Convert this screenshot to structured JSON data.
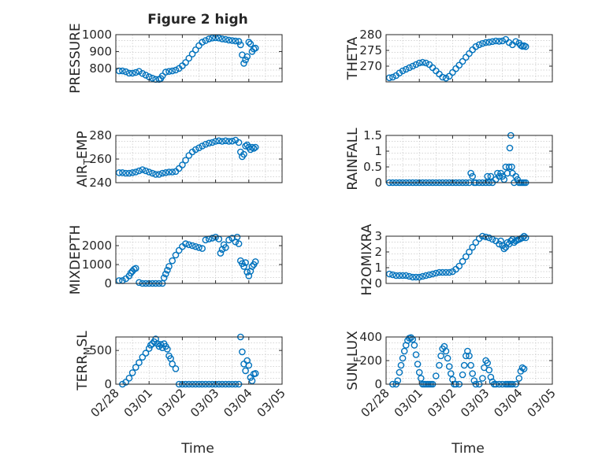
{
  "figure": {
    "title": "Figure 2 high",
    "xlabel": "Time"
  },
  "colors": {
    "marker": "#0072BD",
    "axis": "#262626",
    "grid": "#c8c8c8",
    "background": "#ffffff"
  },
  "chart_data": [
    {
      "type": "scatter",
      "id": "pressure",
      "title": "Figure 2 high",
      "ylabel": "PRESSURE",
      "ylim": [
        720,
        1000
      ],
      "yticks": [
        800,
        900,
        1000
      ],
      "xlim": [
        0,
        5
      ],
      "grid": true,
      "show_xticklabels": false,
      "x": [
        0.1,
        0.2,
        0.3,
        0.4,
        0.5,
        0.6,
        0.7,
        0.8,
        0.9,
        1.0,
        1.1,
        1.2,
        1.3,
        1.35,
        1.4,
        1.5,
        1.6,
        1.7,
        1.8,
        1.9,
        2.0,
        2.1,
        2.2,
        2.3,
        2.4,
        2.5,
        2.6,
        2.7,
        2.8,
        2.9,
        3.0,
        3.1,
        3.2,
        3.3,
        3.4,
        3.5,
        3.6,
        3.7,
        3.75,
        3.8,
        3.85,
        3.9,
        3.95,
        4.0,
        4.05,
        4.1,
        4.15,
        4.2
      ],
      "y": [
        785,
        785,
        780,
        772,
        772,
        776,
        782,
        770,
        760,
        750,
        742,
        735,
        735,
        740,
        755,
        778,
        782,
        785,
        790,
        800,
        815,
        835,
        860,
        885,
        910,
        935,
        955,
        965,
        975,
        980,
        982,
        980,
        975,
        972,
        968,
        965,
        962,
        960,
        940,
        880,
        830,
        850,
        870,
        955,
        945,
        900,
        915,
        920
      ]
    },
    {
      "type": "scatter",
      "id": "theta",
      "ylabel": "THETA",
      "ylim": [
        265,
        280
      ],
      "yticks": [
        270,
        275,
        280
      ],
      "xlim": [
        0,
        5
      ],
      "grid": true,
      "show_xticklabels": false,
      "x": [
        0.1,
        0.2,
        0.3,
        0.4,
        0.5,
        0.6,
        0.7,
        0.8,
        0.9,
        1.0,
        1.1,
        1.2,
        1.3,
        1.4,
        1.5,
        1.6,
        1.7,
        1.8,
        1.9,
        2.0,
        2.1,
        2.2,
        2.3,
        2.4,
        2.5,
        2.6,
        2.7,
        2.8,
        2.9,
        3.0,
        3.1,
        3.2,
        3.3,
        3.4,
        3.5,
        3.6,
        3.7,
        3.8,
        3.9,
        4.0,
        4.05,
        4.1,
        4.15,
        4.2
      ],
      "y": [
        266.3,
        266.5,
        267,
        267.8,
        268.5,
        269,
        269.5,
        270,
        270.5,
        271,
        271.2,
        271,
        270.5,
        269.5,
        268.5,
        267.5,
        266.5,
        266.2,
        266.8,
        268,
        269.2,
        270.3,
        271.5,
        272.8,
        274,
        275.2,
        276.2,
        276.8,
        277.2,
        277.5,
        277.6,
        277.8,
        278,
        277.9,
        278,
        278.5,
        277.5,
        276.8,
        277.8,
        277.3,
        276.6,
        276.3,
        276.5,
        276.2
      ]
    },
    {
      "type": "scatter",
      "id": "air-temp",
      "ylabel": "AIR",
      "ylabel_sub": "T",
      "ylabel_tail": "EMP",
      "ylim": [
        240,
        280
      ],
      "yticks": [
        240,
        260,
        280
      ],
      "xlim": [
        0,
        5
      ],
      "grid": true,
      "show_xticklabels": false,
      "x": [
        0.1,
        0.2,
        0.3,
        0.4,
        0.5,
        0.6,
        0.7,
        0.8,
        0.9,
        1.0,
        1.1,
        1.2,
        1.3,
        1.4,
        1.5,
        1.6,
        1.7,
        1.8,
        1.9,
        2.0,
        2.1,
        2.2,
        2.3,
        2.4,
        2.5,
        2.6,
        2.7,
        2.8,
        2.9,
        3.0,
        3.1,
        3.2,
        3.3,
        3.4,
        3.5,
        3.6,
        3.7,
        3.75,
        3.8,
        3.85,
        3.9,
        3.95,
        4.0,
        4.05,
        4.1,
        4.15,
        4.2
      ],
      "y": [
        248.5,
        248.5,
        248,
        248,
        248.5,
        249,
        250,
        251,
        250,
        249,
        248,
        247,
        247,
        248,
        248.5,
        249,
        249,
        249.5,
        252,
        255,
        259,
        263,
        266,
        268,
        269.5,
        271,
        272.5,
        273.5,
        274,
        275,
        275.5,
        275,
        275.5,
        275,
        275.2,
        276,
        274,
        266,
        262,
        264,
        271,
        272,
        270,
        268,
        270,
        269,
        270
      ]
    },
    {
      "type": "scatter",
      "id": "rainfall",
      "ylabel": "RAINFALL",
      "ylim": [
        0,
        1.5
      ],
      "yticks": [
        0,
        0.5,
        1,
        1.5
      ],
      "xlim": [
        0,
        5
      ],
      "grid": true,
      "show_xticklabels": false,
      "x": [
        0.1,
        0.2,
        0.3,
        0.4,
        0.5,
        0.6,
        0.7,
        0.8,
        0.9,
        1.0,
        1.1,
        1.2,
        1.3,
        1.4,
        1.5,
        1.6,
        1.7,
        1.8,
        1.9,
        2.0,
        2.1,
        2.2,
        2.3,
        2.4,
        2.5,
        2.55,
        2.6,
        2.65,
        2.7,
        2.8,
        2.9,
        3.0,
        3.05,
        3.1,
        3.15,
        3.2,
        3.3,
        3.35,
        3.4,
        3.45,
        3.5,
        3.55,
        3.6,
        3.65,
        3.7,
        3.72,
        3.75,
        3.78,
        3.8,
        3.85,
        3.9,
        3.95,
        4.0,
        4.05,
        4.1,
        4.15,
        4.2
      ],
      "y": [
        0,
        0,
        0,
        0,
        0,
        0,
        0,
        0,
        0,
        0,
        0,
        0,
        0,
        0,
        0,
        0,
        0,
        0,
        0,
        0,
        0,
        0,
        0,
        0,
        0,
        0.3,
        0.2,
        0,
        0,
        0,
        0,
        0,
        0.2,
        0,
        0.2,
        0,
        0.1,
        0.3,
        0.2,
        0.3,
        0.2,
        0.1,
        0.5,
        0.3,
        0.5,
        1.1,
        1.5,
        0.5,
        0.3,
        0,
        0.2,
        0.1,
        0,
        0,
        0,
        0,
        0
      ]
    },
    {
      "type": "scatter",
      "id": "mixdepth",
      "ylabel": "MIXDEPTH",
      "ylim": [
        0,
        2500
      ],
      "yticks": [
        0,
        1000,
        2000
      ],
      "xlim": [
        0,
        5
      ],
      "grid": true,
      "show_xticklabels": false,
      "x": [
        0.1,
        0.2,
        0.3,
        0.4,
        0.45,
        0.5,
        0.55,
        0.6,
        0.7,
        0.8,
        0.9,
        1.0,
        1.1,
        1.2,
        1.3,
        1.4,
        1.45,
        1.5,
        1.55,
        1.6,
        1.7,
        1.8,
        1.9,
        2.0,
        2.1,
        2.2,
        2.3,
        2.4,
        2.5,
        2.6,
        2.7,
        2.8,
        2.9,
        3.0,
        3.1,
        3.15,
        3.2,
        3.25,
        3.3,
        3.4,
        3.5,
        3.6,
        3.65,
        3.7,
        3.75,
        3.8,
        3.85,
        3.9,
        3.95,
        4.0,
        4.05,
        4.1,
        4.15,
        4.2
      ],
      "y": [
        150,
        150,
        250,
        400,
        550,
        650,
        750,
        800,
        50,
        0,
        0,
        0,
        0,
        0,
        0,
        0,
        300,
        500,
        700,
        900,
        1200,
        1500,
        1750,
        1950,
        2100,
        2050,
        2000,
        1950,
        1900,
        1850,
        2300,
        2350,
        2400,
        2450,
        2350,
        1600,
        1800,
        2050,
        1900,
        2300,
        2400,
        2200,
        2450,
        2100,
        1200,
        1050,
        900,
        1100,
        600,
        400,
        650,
        900,
        1000,
        1150
      ]
    },
    {
      "type": "scatter",
      "id": "h2omixra",
      "ylabel": "H2OMIXRA",
      "ylim": [
        0,
        3
      ],
      "yticks": [
        0,
        1,
        2,
        3
      ],
      "xlim": [
        0,
        5
      ],
      "grid": true,
      "show_xticklabels": false,
      "x": [
        0.1,
        0.2,
        0.3,
        0.4,
        0.5,
        0.6,
        0.7,
        0.8,
        0.9,
        1.0,
        1.1,
        1.2,
        1.3,
        1.4,
        1.5,
        1.6,
        1.7,
        1.8,
        1.9,
        2.0,
        2.1,
        2.2,
        2.3,
        2.4,
        2.5,
        2.6,
        2.7,
        2.8,
        2.9,
        3.0,
        3.1,
        3.2,
        3.3,
        3.4,
        3.45,
        3.5,
        3.55,
        3.6,
        3.65,
        3.7,
        3.75,
        3.8,
        3.85,
        3.9,
        3.95,
        4.0,
        4.05,
        4.1,
        4.15,
        4.2
      ],
      "y": [
        0.6,
        0.55,
        0.5,
        0.5,
        0.5,
        0.5,
        0.45,
        0.4,
        0.4,
        0.4,
        0.45,
        0.5,
        0.55,
        0.6,
        0.65,
        0.7,
        0.7,
        0.7,
        0.7,
        0.75,
        0.9,
        1.1,
        1.4,
        1.7,
        2.0,
        2.3,
        2.6,
        2.85,
        3.0,
        2.95,
        2.9,
        2.8,
        2.7,
        2.5,
        2.7,
        2.4,
        2.2,
        2.3,
        2.6,
        2.5,
        2.7,
        2.8,
        2.6,
        2.7,
        2.75,
        2.8,
        2.85,
        2.9,
        3.0,
        2.9
      ]
    },
    {
      "type": "scatter",
      "id": "terr-msl",
      "ylabel": "TERR",
      "ylabel_sub": "M",
      "ylabel_tail": "SL",
      "ylim": [
        0,
        700
      ],
      "yticks": [
        0,
        500
      ],
      "xlim": [
        0,
        5
      ],
      "xticks": [
        0,
        1,
        2,
        3,
        4,
        5
      ],
      "xticklabels": [
        "02/28",
        "03/01",
        "03/02",
        "03/03",
        "03/04",
        "03/05"
      ],
      "grid": true,
      "show_xticklabels": true,
      "x": [
        0.2,
        0.3,
        0.4,
        0.5,
        0.6,
        0.7,
        0.8,
        0.9,
        1.0,
        1.05,
        1.1,
        1.15,
        1.2,
        1.25,
        1.3,
        1.35,
        1.4,
        1.45,
        1.5,
        1.55,
        1.6,
        1.65,
        1.7,
        1.8,
        1.9,
        2.0,
        2.1,
        2.2,
        2.3,
        2.4,
        2.5,
        2.6,
        2.7,
        2.8,
        2.9,
        3.0,
        3.1,
        3.2,
        3.3,
        3.4,
        3.5,
        3.6,
        3.7,
        3.75,
        3.8,
        3.85,
        3.9,
        3.95,
        4.0,
        4.05,
        4.1,
        4.15,
        4.2
      ],
      "y": [
        0,
        30,
        90,
        170,
        250,
        320,
        400,
        460,
        530,
        580,
        600,
        630,
        670,
        600,
        560,
        590,
        540,
        600,
        560,
        520,
        420,
        380,
        300,
        230,
        0,
        0,
        0,
        0,
        0,
        0,
        0,
        0,
        0,
        0,
        0,
        0,
        0,
        0,
        0,
        0,
        0,
        0,
        0,
        700,
        480,
        300,
        200,
        350,
        280,
        100,
        50,
        150,
        160
      ]
    },
    {
      "type": "scatter",
      "id": "sun-flux",
      "ylabel": "SUN",
      "ylabel_sub": "F",
      "ylabel_tail": "LUX",
      "ylim": [
        0,
        400
      ],
      "yticks": [
        0,
        200,
        400
      ],
      "xlim": [
        0,
        5
      ],
      "xticks": [
        0,
        1,
        2,
        3,
        4,
        5
      ],
      "xticklabels": [
        "02/28",
        "03/01",
        "03/02",
        "03/03",
        "03/04",
        "03/05"
      ],
      "grid": true,
      "show_xticklabels": true,
      "x": [
        0.2,
        0.3,
        0.35,
        0.4,
        0.45,
        0.5,
        0.55,
        0.6,
        0.65,
        0.7,
        0.75,
        0.8,
        0.85,
        0.9,
        0.95,
        1.0,
        1.05,
        1.1,
        1.15,
        1.2,
        1.25,
        1.3,
        1.35,
        1.4,
        1.5,
        1.6,
        1.65,
        1.7,
        1.75,
        1.8,
        1.85,
        1.9,
        1.95,
        2.0,
        2.05,
        2.1,
        2.2,
        2.3,
        2.35,
        2.4,
        2.45,
        2.5,
        2.55,
        2.6,
        2.65,
        2.7,
        2.8,
        2.9,
        2.95,
        3.0,
        3.05,
        3.1,
        3.15,
        3.2,
        3.25,
        3.3,
        3.4,
        3.5,
        3.6,
        3.65,
        3.7,
        3.75,
        3.8,
        3.9,
        4.0,
        4.05,
        4.1,
        4.15
      ],
      "y": [
        0,
        0,
        30,
        100,
        160,
        220,
        280,
        330,
        370,
        390,
        395,
        380,
        330,
        250,
        170,
        100,
        50,
        0,
        0,
        0,
        0,
        0,
        0,
        0,
        70,
        160,
        240,
        300,
        320,
        280,
        220,
        150,
        90,
        40,
        0,
        0,
        0,
        80,
        160,
        240,
        280,
        240,
        160,
        90,
        30,
        0,
        0,
        50,
        140,
        200,
        180,
        120,
        60,
        20,
        0,
        0,
        0,
        0,
        0,
        0,
        0,
        0,
        0,
        0,
        50,
        110,
        140,
        130
      ]
    }
  ]
}
